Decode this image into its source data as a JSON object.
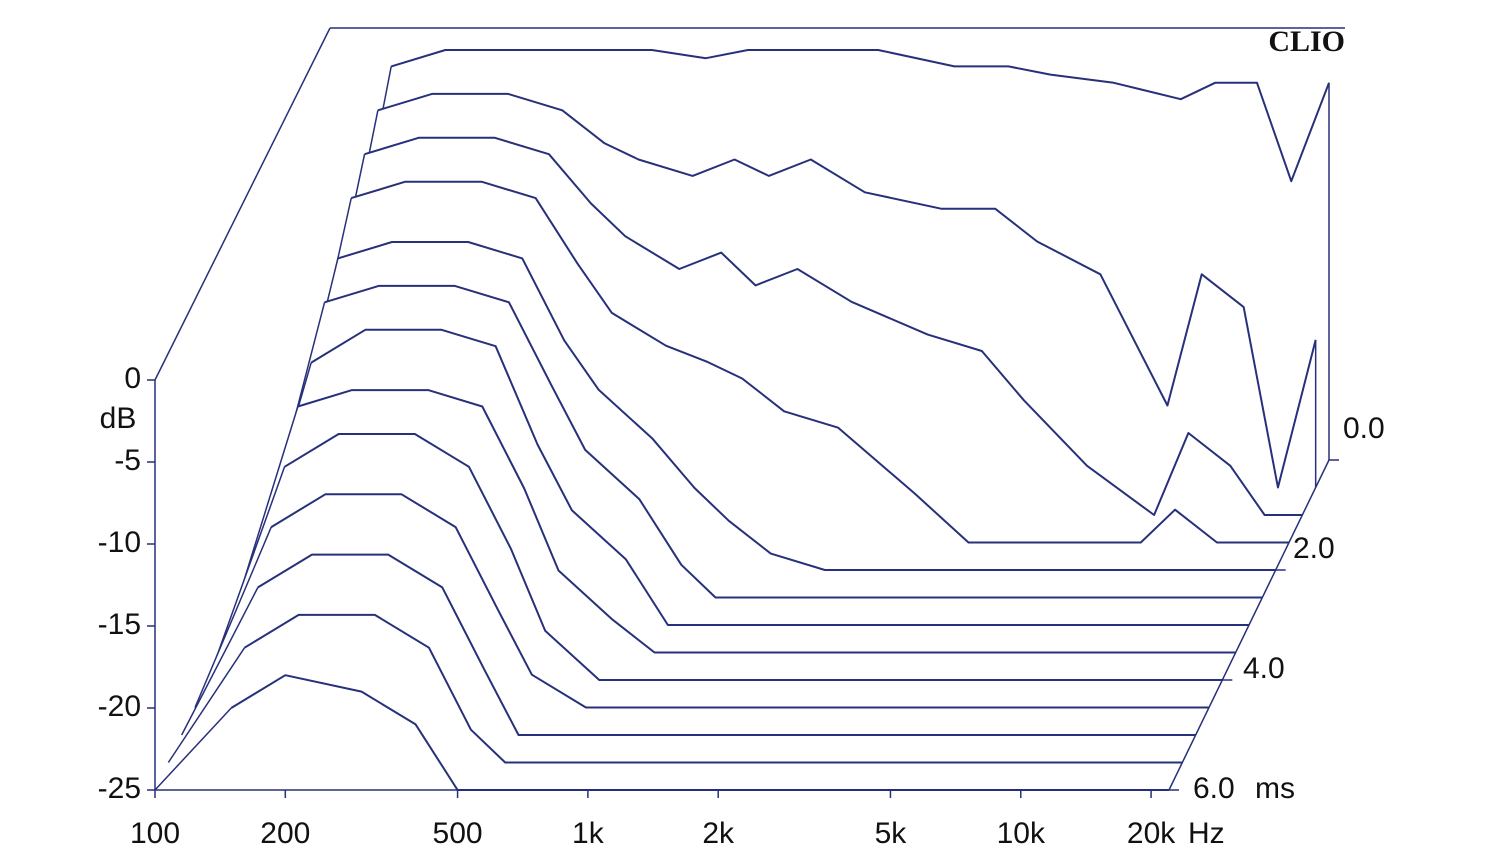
{
  "chart_data": {
    "type": "waterfall",
    "title": "CLIO",
    "x": [
      150,
      200,
      300,
      400,
      500,
      600,
      800,
      1000,
      1200,
      1500,
      2000,
      3000,
      4000,
      5000,
      7000,
      10000,
      12000,
      15000,
      18000,
      22000
    ],
    "xlim": [
      100,
      22000
    ],
    "xticks": [
      100,
      200,
      500,
      {
        "value": 1000,
        "label": "1k"
      },
      {
        "value": 2000,
        "label": "2k"
      },
      {
        "value": 5000,
        "label": "5k"
      },
      {
        "value": 10000,
        "label": "10k"
      },
      {
        "value": 20000,
        "label": "20k"
      }
    ],
    "x_unit": "Hz",
    "ylim": [
      -25,
      0
    ],
    "yticks": [
      0,
      -5,
      -10,
      -15,
      -20,
      -25
    ],
    "y_label": "dB",
    "zlim": [
      0,
      6
    ],
    "zticks": [
      {
        "value": 0,
        "label": "0.0"
      },
      {
        "value": 2,
        "label": "2.0"
      },
      {
        "value": 4,
        "label": "4.0"
      },
      {
        "value": 6,
        "label": "6.0"
      }
    ],
    "z_unit": "ms",
    "color": "#27307a",
    "slices": [
      {
        "z": 0,
        "values": [
          -1,
          0,
          0,
          0,
          0,
          0,
          -0.5,
          0,
          0,
          0,
          0,
          -1,
          -1,
          -1.5,
          -2,
          -3,
          -2,
          -2,
          -8,
          -2
        ]
      },
      {
        "z": 0.5,
        "values": [
          -2,
          -1,
          -1,
          -2,
          -4,
          -5,
          -6,
          -5,
          -6,
          -5,
          -7,
          -8,
          -8,
          -10,
          -12,
          -20,
          -12,
          -14,
          -25,
          -16
        ]
      },
      {
        "z": 1,
        "values": [
          -3,
          -2,
          -2,
          -3,
          -6,
          -8,
          -10,
          -9,
          -11,
          -10,
          -12,
          -14,
          -15,
          -18,
          -22,
          -25,
          -20,
          -22,
          -25,
          -25
        ]
      },
      {
        "z": 1.5,
        "values": [
          -4,
          -3,
          -3,
          -4,
          -8,
          -11,
          -13,
          -14,
          -15,
          -17,
          -18,
          -22,
          -25,
          -25,
          -25,
          -25,
          -23,
          -25,
          -25,
          -25
        ]
      },
      {
        "z": 2,
        "values": [
          -6,
          -5,
          -5,
          -6,
          -11,
          -14,
          -17,
          -20,
          -22,
          -24,
          -25,
          -25,
          -25,
          -25,
          -25,
          -25,
          -25,
          -25,
          -25,
          -25
        ]
      },
      {
        "z": 2.5,
        "values": [
          -7,
          -6,
          -6,
          -7,
          -12,
          -16,
          -19,
          -23,
          -25,
          -25,
          -25,
          -25,
          -25,
          -25,
          -25,
          -25,
          -25,
          -25,
          -25,
          -25
        ]
      },
      {
        "z": 3,
        "values": [
          -9,
          -7,
          -7,
          -8,
          -14,
          -18,
          -21,
          -25,
          -25,
          -25,
          -25,
          -25,
          -25,
          -25,
          -25,
          -25,
          -25,
          -25,
          -25,
          -25
        ]
      },
      {
        "z": 3.5,
        "values": [
          -10,
          -9,
          -9,
          -10,
          -15,
          -20,
          -23,
          -25,
          -25,
          -25,
          -25,
          -25,
          -25,
          -25,
          -25,
          -25,
          -25,
          -25,
          -25,
          -25
        ]
      },
      {
        "z": 4,
        "values": [
          -12,
          -10,
          -10,
          -12,
          -17,
          -22,
          -25,
          -25,
          -25,
          -25,
          -25,
          -25,
          -25,
          -25,
          -25,
          -25,
          -25,
          -25,
          -25,
          -25
        ]
      },
      {
        "z": 4.5,
        "values": [
          -14,
          -12,
          -12,
          -14,
          -19,
          -23,
          -25,
          -25,
          -25,
          -25,
          -25,
          -25,
          -25,
          -25,
          -25,
          -25,
          -25,
          -25,
          -25,
          -25
        ]
      },
      {
        "z": 5,
        "values": [
          -16,
          -14,
          -14,
          -16,
          -21,
          -25,
          -25,
          -25,
          -25,
          -25,
          -25,
          -25,
          -25,
          -25,
          -25,
          -25,
          -25,
          -25,
          -25,
          -25
        ]
      },
      {
        "z": 5.5,
        "values": [
          -18,
          -16,
          -16,
          -18,
          -23,
          -25,
          -25,
          -25,
          -25,
          -25,
          -25,
          -25,
          -25,
          -25,
          -25,
          -25,
          -25,
          -25,
          -25,
          -25
        ]
      },
      {
        "z": 6,
        "values": [
          -20,
          -18,
          -19,
          -21,
          -25,
          -25,
          -25,
          -25,
          -25,
          -25,
          -25,
          -25,
          -25,
          -25,
          -25,
          -25,
          -25,
          -25,
          -25,
          -25
        ]
      }
    ]
  }
}
